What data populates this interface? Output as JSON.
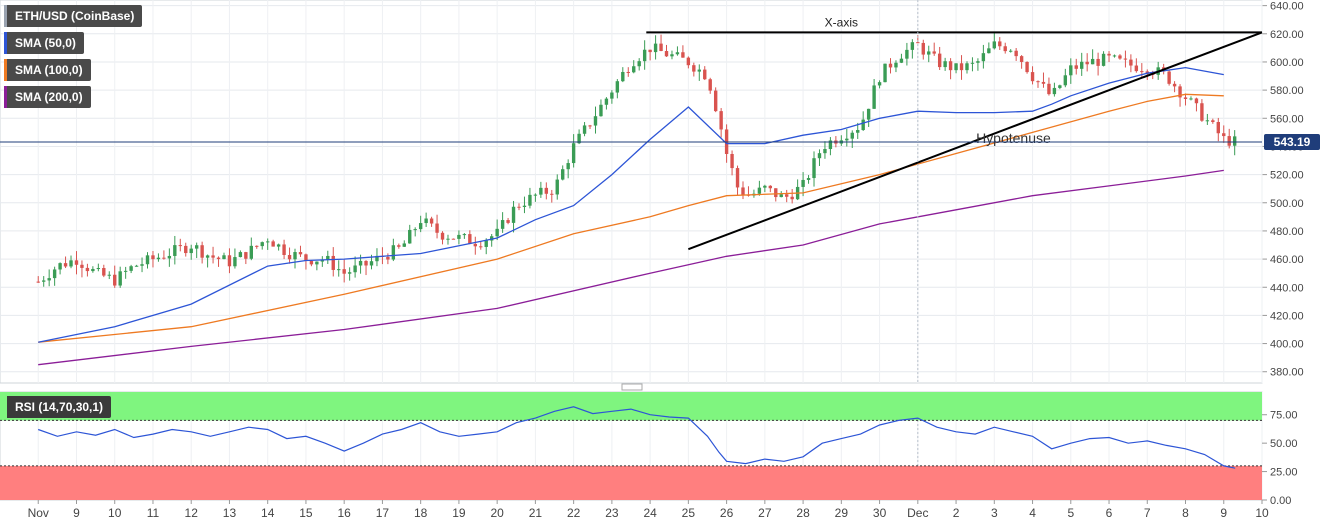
{
  "legend": {
    "pair": "ETH/USD (CoinBase)",
    "sma50": "SMA (50,0)",
    "sma100": "SMA (100,0)",
    "sma200": "SMA (200,0)",
    "rsi": "RSI (14,70,30,1)"
  },
  "colors": {
    "up": "#3a9c55",
    "down": "#d9534f",
    "sma50": "#2d55d6",
    "sma100": "#ee7a22",
    "sma200": "#8b1e98",
    "rsi_line": "#2d55d6",
    "overbought_zone": "#7ff57f",
    "oversold_zone": "#ff7f7f",
    "price_tag": "#1f3d7a"
  },
  "chart_data": [
    {
      "type": "candlestick",
      "title": "",
      "x_ticks": [
        "Nov",
        "9",
        "10",
        "11",
        "12",
        "13",
        "14",
        "15",
        "16",
        "17",
        "18",
        "19",
        "20",
        "21",
        "22",
        "23",
        "24",
        "25",
        "26",
        "27",
        "28",
        "29",
        "30",
        "Dec",
        "2",
        "3",
        "4",
        "5",
        "6",
        "7",
        "8",
        "9",
        "10"
      ],
      "y_ticks": [
        380,
        400,
        420,
        440,
        460,
        480,
        500,
        520,
        540,
        560,
        580,
        600,
        620,
        640
      ],
      "ylim": [
        372,
        644
      ],
      "last_price": "543.19",
      "ohlc_anchors": [
        {
          "day": 8.0,
          "close": 444
        },
        {
          "day": 8.5,
          "close": 455
        },
        {
          "day": 9.0,
          "close": 460
        },
        {
          "day": 9.5,
          "close": 450
        },
        {
          "day": 10.0,
          "close": 445
        },
        {
          "day": 10.5,
          "close": 455
        },
        {
          "day": 11.0,
          "close": 460
        },
        {
          "day": 11.5,
          "close": 465
        },
        {
          "day": 12.0,
          "close": 470
        },
        {
          "day": 12.5,
          "close": 462
        },
        {
          "day": 13.0,
          "close": 458
        },
        {
          "day": 13.5,
          "close": 465
        },
        {
          "day": 14.0,
          "close": 475
        },
        {
          "day": 14.5,
          "close": 465
        },
        {
          "day": 15.0,
          "close": 460
        },
        {
          "day": 15.5,
          "close": 460
        },
        {
          "day": 16.0,
          "close": 450
        },
        {
          "day": 16.5,
          "close": 455
        },
        {
          "day": 17.0,
          "close": 462
        },
        {
          "day": 17.5,
          "close": 468
        },
        {
          "day": 18.0,
          "close": 488
        },
        {
          "day": 18.5,
          "close": 478
        },
        {
          "day": 19.0,
          "close": 475
        },
        {
          "day": 19.5,
          "close": 472
        },
        {
          "day": 20.0,
          "close": 478
        },
        {
          "day": 20.5,
          "close": 498
        },
        {
          "day": 21.0,
          "close": 505
        },
        {
          "day": 21.5,
          "close": 510
        },
        {
          "day": 22.0,
          "close": 540
        },
        {
          "day": 22.5,
          "close": 560
        },
        {
          "day": 23.0,
          "close": 580
        },
        {
          "day": 23.5,
          "close": 600
        },
        {
          "day": 24.0,
          "close": 610
        },
        {
          "day": 24.5,
          "close": 605
        },
        {
          "day": 25.0,
          "close": 600
        },
        {
          "day": 25.5,
          "close": 590
        },
        {
          "day": 25.8,
          "close": 560
        },
        {
          "day": 26.0,
          "close": 535
        },
        {
          "day": 26.3,
          "close": 510
        },
        {
          "day": 26.6,
          "close": 505
        },
        {
          "day": 27.0,
          "close": 510
        },
        {
          "day": 27.5,
          "close": 503
        },
        {
          "day": 28.0,
          "close": 512
        },
        {
          "day": 28.5,
          "close": 540
        },
        {
          "day": 29.0,
          "close": 548
        },
        {
          "day": 29.5,
          "close": 555
        },
        {
          "day": 30.0,
          "close": 590
        },
        {
          "day": 30.5,
          "close": 605
        },
        {
          "day": 31.0,
          "close": 612
        },
        {
          "day": 31.5,
          "close": 600
        },
        {
          "day": 32.0,
          "close": 595
        },
        {
          "day": 32.5,
          "close": 598
        },
        {
          "day": 33.0,
          "close": 612
        },
        {
          "day": 33.5,
          "close": 610
        },
        {
          "day": 34.0,
          "close": 590
        },
        {
          "day": 34.5,
          "close": 575
        },
        {
          "day": 35.0,
          "close": 595
        },
        {
          "day": 35.5,
          "close": 600
        },
        {
          "day": 36.0,
          "close": 602
        },
        {
          "day": 36.5,
          "close": 598
        },
        {
          "day": 37.0,
          "close": 596
        },
        {
          "day": 37.5,
          "close": 590
        },
        {
          "day": 38.0,
          "close": 575
        },
        {
          "day": 38.5,
          "close": 560
        },
        {
          "day": 39.0,
          "close": 545
        },
        {
          "day": 39.3,
          "close": 543.19
        }
      ],
      "sma50": [
        [
          8,
          401
        ],
        [
          10,
          412
        ],
        [
          12,
          428
        ],
        [
          14,
          455
        ],
        [
          15,
          459
        ],
        [
          16,
          460
        ],
        [
          18,
          464
        ],
        [
          20,
          475
        ],
        [
          21,
          488
        ],
        [
          22,
          498
        ],
        [
          23,
          520
        ],
        [
          24,
          545
        ],
        [
          25,
          568
        ],
        [
          26,
          542
        ],
        [
          27,
          542
        ],
        [
          28,
          548
        ],
        [
          29,
          552
        ],
        [
          30,
          560
        ],
        [
          31,
          565
        ],
        [
          32,
          564
        ],
        [
          33,
          564
        ],
        [
          34,
          565
        ],
        [
          34.5,
          570
        ],
        [
          35,
          576
        ],
        [
          36,
          585
        ],
        [
          37,
          592
        ],
        [
          38,
          596
        ],
        [
          39,
          591
        ]
      ],
      "sma100": [
        [
          8,
          401
        ],
        [
          12,
          412
        ],
        [
          16,
          435
        ],
        [
          20,
          460
        ],
        [
          22,
          478
        ],
        [
          24,
          490
        ],
        [
          25,
          498
        ],
        [
          26,
          505
        ],
        [
          28,
          507
        ],
        [
          30,
          520
        ],
        [
          32,
          535
        ],
        [
          34,
          550
        ],
        [
          36,
          565
        ],
        [
          37,
          572
        ],
        [
          38,
          577
        ],
        [
          39,
          576
        ]
      ],
      "sma200": [
        [
          8,
          385
        ],
        [
          12,
          398
        ],
        [
          16,
          410
        ],
        [
          20,
          425
        ],
        [
          24,
          450
        ],
        [
          26,
          462
        ],
        [
          28,
          470
        ],
        [
          30,
          485
        ],
        [
          32,
          495
        ],
        [
          34,
          505
        ],
        [
          36,
          512
        ],
        [
          38,
          519
        ],
        [
          39,
          523
        ]
      ],
      "annotations": [
        {
          "text": "X-axis",
          "from": [
            23.9,
            621
          ],
          "to": [
            40.0,
            621
          ]
        },
        {
          "text": "Hypotenuse",
          "from": [
            25.0,
            467
          ],
          "to": [
            40.0,
            621
          ]
        }
      ]
    },
    {
      "type": "line",
      "title": "",
      "name": "RSI (14,70,30,1)",
      "ylim": [
        0,
        95
      ],
      "y_ticks": [
        "0.00",
        "25.00",
        "50.00",
        "75.00"
      ],
      "overbought": 70,
      "oversold": 30,
      "points": [
        [
          8.0,
          62
        ],
        [
          8.5,
          56
        ],
        [
          9.0,
          60
        ],
        [
          9.5,
          57
        ],
        [
          10.0,
          62
        ],
        [
          10.5,
          55
        ],
        [
          11.0,
          58
        ],
        [
          11.5,
          62
        ],
        [
          12.0,
          60
        ],
        [
          12.5,
          56
        ],
        [
          13.0,
          60
        ],
        [
          13.5,
          64
        ],
        [
          14.0,
          62
        ],
        [
          14.5,
          54
        ],
        [
          15.0,
          56
        ],
        [
          15.5,
          50
        ],
        [
          16.0,
          43
        ],
        [
          16.5,
          50
        ],
        [
          17.0,
          58
        ],
        [
          17.5,
          62
        ],
        [
          18.0,
          68
        ],
        [
          18.5,
          60
        ],
        [
          19.0,
          56
        ],
        [
          19.5,
          58
        ],
        [
          20.0,
          60
        ],
        [
          20.5,
          68
        ],
        [
          21.0,
          72
        ],
        [
          21.5,
          78
        ],
        [
          22.0,
          82
        ],
        [
          22.5,
          76
        ],
        [
          23.0,
          78
        ],
        [
          23.5,
          80
        ],
        [
          24.0,
          75
        ],
        [
          24.5,
          73
        ],
        [
          25.0,
          72
        ],
        [
          25.5,
          56
        ],
        [
          25.8,
          42
        ],
        [
          26.0,
          34
        ],
        [
          26.5,
          32
        ],
        [
          27.0,
          36
        ],
        [
          27.5,
          34
        ],
        [
          28.0,
          38
        ],
        [
          28.5,
          50
        ],
        [
          29.0,
          54
        ],
        [
          29.5,
          58
        ],
        [
          30.0,
          66
        ],
        [
          30.5,
          70
        ],
        [
          31.0,
          72
        ],
        [
          31.5,
          64
        ],
        [
          32.0,
          60
        ],
        [
          32.5,
          58
        ],
        [
          33.0,
          64
        ],
        [
          33.5,
          60
        ],
        [
          34.0,
          56
        ],
        [
          34.5,
          45
        ],
        [
          35.0,
          50
        ],
        [
          35.5,
          54
        ],
        [
          36.0,
          55
        ],
        [
          36.5,
          50
        ],
        [
          37.0,
          52
        ],
        [
          37.5,
          48
        ],
        [
          38.0,
          45
        ],
        [
          38.5,
          40
        ],
        [
          39.0,
          30
        ],
        [
          39.3,
          28
        ]
      ]
    }
  ]
}
